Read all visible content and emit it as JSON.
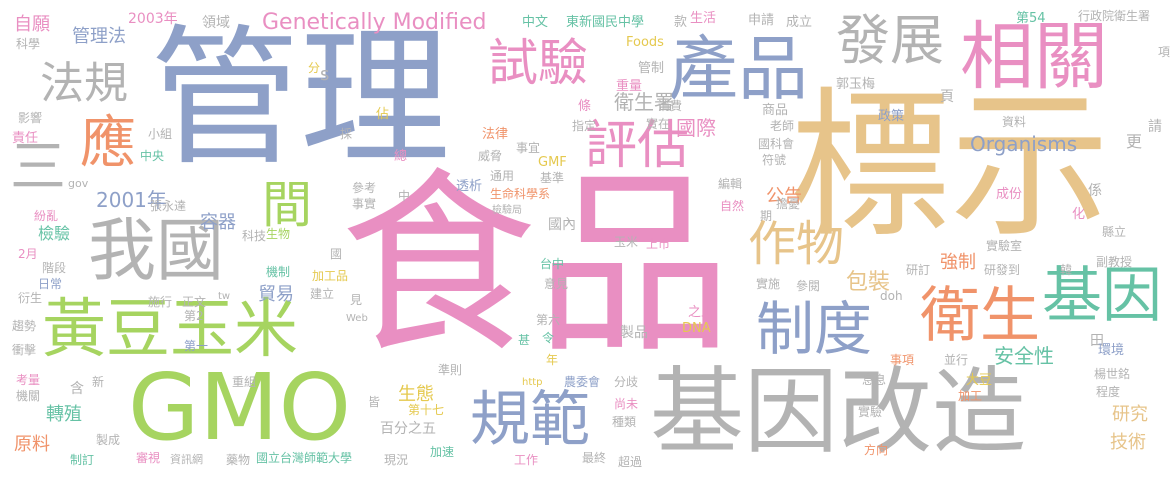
{
  "colors": {
    "background": "#ffffff",
    "palette": [
      "#e7c48a",
      "#8ea0c8",
      "#e98fc2",
      "#a6d460",
      "#b3b3b3",
      "#f0936a",
      "#66c2a5",
      "#e5c94f"
    ]
  },
  "words": [
    {
      "text": "食品",
      "color": "#e98fc2"
    },
    {
      "text": "標示",
      "color": "#e7c48a"
    },
    {
      "text": "管理",
      "color": "#8ea0c8"
    },
    {
      "text": "GMO",
      "color": "#a6d460"
    },
    {
      "text": "基因改造",
      "color": "#b3b3b3"
    },
    {
      "text": "相關",
      "color": "#e98fc2"
    },
    {
      "text": "產品",
      "color": "#8ea0c8"
    },
    {
      "text": "黃豆玉米",
      "color": "#a6d460"
    },
    {
      "text": "我國",
      "color": "#b3b3b3"
    },
    {
      "text": "規範",
      "color": "#8ea0c8"
    },
    {
      "text": "衛生",
      "color": "#f0936a"
    },
    {
      "text": "基因",
      "color": "#66c2a5"
    },
    {
      "text": "制度",
      "color": "#8ea0c8"
    },
    {
      "text": "試驗",
      "color": "#e98fc2"
    },
    {
      "text": "發展",
      "color": "#b3b3b3"
    },
    {
      "text": "評估",
      "color": "#e98fc2"
    },
    {
      "text": "作物",
      "color": "#e7c48a"
    },
    {
      "text": "法規",
      "color": "#b3b3b3"
    },
    {
      "text": "應",
      "color": "#f0936a"
    },
    {
      "text": "三",
      "color": "#b3b3b3"
    },
    {
      "text": "間",
      "color": "#a6d460"
    },
    {
      "text": "Genetically Modified",
      "color": "#e98fc2"
    },
    {
      "text": "2001年",
      "color": "#8ea0c8"
    },
    {
      "text": "國際",
      "color": "#e98fc2"
    },
    {
      "text": "公告",
      "color": "#f0936a"
    },
    {
      "text": "Organisms",
      "color": "#8ea0c8"
    },
    {
      "text": "包裝",
      "color": "#e7c48a"
    },
    {
      "text": "強制",
      "color": "#f0936a"
    },
    {
      "text": "安全性",
      "color": "#66c2a5"
    },
    {
      "text": "衛生署",
      "color": "#b3b3b3"
    },
    {
      "text": "管理法",
      "color": "#8ea0c8"
    },
    {
      "text": "完備",
      "color": "#e5c94f"
    },
    {
      "text": "容器",
      "color": "#8ea0c8"
    },
    {
      "text": "檢驗",
      "color": "#66c2a5"
    },
    {
      "text": "貿易",
      "color": "#8ea0c8"
    },
    {
      "text": "轉殖",
      "color": "#66c2a5"
    },
    {
      "text": "生態",
      "color": "#e5c94f"
    },
    {
      "text": "原料",
      "color": "#f0936a"
    },
    {
      "text": "技術",
      "color": "#e7c48a"
    },
    {
      "text": "研究",
      "color": "#e7c48a"
    },
    {
      "text": "自願",
      "color": "#e98fc2"
    },
    {
      "text": "2003年",
      "color": "#e98fc2"
    },
    {
      "text": "領域",
      "color": "#b3b3b3"
    },
    {
      "text": "中文",
      "color": "#66c2a5"
    },
    {
      "text": "東新國民中學",
      "color": "#66c2a5"
    },
    {
      "text": "款",
      "color": "#b3b3b3"
    },
    {
      "text": "生活",
      "color": "#e98fc2"
    },
    {
      "text": "申請",
      "color": "#b3b3b3"
    },
    {
      "text": "成立",
      "color": "#b3b3b3"
    },
    {
      "text": "第54",
      "color": "#66c2a5"
    },
    {
      "text": "行政院衛生署",
      "color": "#b3b3b3"
    },
    {
      "text": "科學",
      "color": "#b3b3b3"
    },
    {
      "text": "Foods",
      "color": "#e5c94f"
    },
    {
      "text": "項",
      "color": "#b3b3b3"
    },
    {
      "text": "分",
      "color": "#e5c94f"
    },
    {
      "text": "s",
      "color": "#b3b3b3"
    },
    {
      "text": "重量",
      "color": "#e98fc2"
    },
    {
      "text": "管制",
      "color": "#b3b3b3"
    },
    {
      "text": "郭玉梅",
      "color": "#b3b3b3"
    },
    {
      "text": "消費",
      "color": "#b3b3b3"
    },
    {
      "text": "商品",
      "color": "#b3b3b3"
    },
    {
      "text": "政策",
      "color": "#8ea0c8"
    },
    {
      "text": "頁",
      "color": "#b3b3b3"
    },
    {
      "text": "影響",
      "color": "#b3b3b3"
    },
    {
      "text": "佔",
      "color": "#e5c94f"
    },
    {
      "text": "條",
      "color": "#e98fc2"
    },
    {
      "text": "指定",
      "color": "#b3b3b3"
    },
    {
      "text": "實在",
      "color": "#b3b3b3"
    },
    {
      "text": "老師",
      "color": "#b3b3b3"
    },
    {
      "text": "資料",
      "color": "#b3b3b3"
    },
    {
      "text": "請",
      "color": "#b3b3b3"
    },
    {
      "text": "小組",
      "color": "#b3b3b3"
    },
    {
      "text": "採",
      "color": "#b3b3b3"
    },
    {
      "text": "法律",
      "color": "#f0936a"
    },
    {
      "text": "國科會",
      "color": "#b3b3b3"
    },
    {
      "text": "責任",
      "color": "#e98fc2"
    },
    {
      "text": "中央",
      "color": "#66c2a5"
    },
    {
      "text": "總",
      "color": "#e98fc2"
    },
    {
      "text": "威脅",
      "color": "#b3b3b3"
    },
    {
      "text": "事宜",
      "color": "#b3b3b3"
    },
    {
      "text": "GMF",
      "color": "#e5c94f"
    },
    {
      "text": "符號",
      "color": "#b3b3b3"
    },
    {
      "text": "更",
      "color": "#b3b3b3"
    },
    {
      "text": "gov",
      "color": "#b3b3b3"
    },
    {
      "text": "透析",
      "color": "#8ea0c8"
    },
    {
      "text": "通用",
      "color": "#b3b3b3"
    },
    {
      "text": "基準",
      "color": "#b3b3b3"
    },
    {
      "text": "編輯",
      "color": "#b3b3b3"
    },
    {
      "text": "成份",
      "color": "#e98fc2"
    },
    {
      "text": "係",
      "color": "#b3b3b3"
    },
    {
      "text": "參考",
      "color": "#b3b3b3"
    },
    {
      "text": "中",
      "color": "#b3b3b3"
    },
    {
      "text": "生命科學系",
      "color": "#f0936a"
    },
    {
      "text": "擔憂",
      "color": "#b3b3b3"
    },
    {
      "text": "事實",
      "color": "#b3b3b3"
    },
    {
      "text": "檢驗局",
      "color": "#b3b3b3"
    },
    {
      "text": "自然",
      "color": "#e98fc2"
    },
    {
      "text": "紛亂",
      "color": "#e98fc2"
    },
    {
      "text": "張永達",
      "color": "#b3b3b3"
    },
    {
      "text": "化",
      "color": "#e98fc2"
    },
    {
      "text": "期",
      "color": "#b3b3b3"
    },
    {
      "text": "科技",
      "color": "#b3b3b3"
    },
    {
      "text": "國內",
      "color": "#b3b3b3"
    },
    {
      "text": "縣立",
      "color": "#b3b3b3"
    },
    {
      "text": "實驗室",
      "color": "#b3b3b3"
    },
    {
      "text": "生物",
      "color": "#a6d460"
    },
    {
      "text": "國",
      "color": "#b3b3b3"
    },
    {
      "text": "玉米",
      "color": "#b3b3b3"
    },
    {
      "text": "上市",
      "color": "#e98fc2"
    },
    {
      "text": "2月",
      "color": "#e98fc2"
    },
    {
      "text": "台中",
      "color": "#66c2a5"
    },
    {
      "text": "階段",
      "color": "#b3b3b3"
    },
    {
      "text": "機制",
      "color": "#66c2a5"
    },
    {
      "text": "加工品",
      "color": "#e5c94f"
    },
    {
      "text": "研訂",
      "color": "#b3b3b3"
    },
    {
      "text": "研發到",
      "color": "#b3b3b3"
    },
    {
      "text": "韓",
      "color": "#b3b3b3"
    },
    {
      "text": "副教授",
      "color": "#b3b3b3"
    },
    {
      "text": "日常",
      "color": "#8ea0c8"
    },
    {
      "text": "施行",
      "color": "#b3b3b3"
    },
    {
      "text": "正文",
      "color": "#b3b3b3"
    },
    {
      "text": "tw",
      "color": "#b3b3b3"
    },
    {
      "text": "實施",
      "color": "#b3b3b3"
    },
    {
      "text": "參閱",
      "color": "#b3b3b3"
    },
    {
      "text": "doh",
      "color": "#b3b3b3"
    },
    {
      "text": "衍生",
      "color": "#b3b3b3"
    },
    {
      "text": "建立",
      "color": "#b3b3b3"
    },
    {
      "text": "見",
      "color": "#b3b3b3"
    },
    {
      "text": "意見",
      "color": "#b3b3b3"
    },
    {
      "text": "之上",
      "color": "#e98fc2"
    },
    {
      "text": "趨勢",
      "color": "#b3b3b3"
    },
    {
      "text": "第2",
      "color": "#b3b3b3"
    },
    {
      "text": "Web",
      "color": "#b3b3b3"
    },
    {
      "text": "DNA",
      "color": "#e5c94f"
    },
    {
      "text": "衝擊",
      "color": "#b3b3b3"
    },
    {
      "text": "第六",
      "color": "#b3b3b3"
    },
    {
      "text": "製品",
      "color": "#b3b3b3"
    },
    {
      "text": "第一",
      "color": "#8ea0c8"
    },
    {
      "text": "甚",
      "color": "#66c2a5"
    },
    {
      "text": "令",
      "color": "#66c2a5"
    },
    {
      "text": "田",
      "color": "#b3b3b3"
    },
    {
      "text": "並行",
      "color": "#b3b3b3"
    },
    {
      "text": "環境",
      "color": "#8ea0c8"
    },
    {
      "text": "事項",
      "color": "#f0936a"
    },
    {
      "text": "考量",
      "color": "#e98fc2"
    },
    {
      "text": "新",
      "color": "#b3b3b3"
    },
    {
      "text": "年",
      "color": "#e5c94f"
    },
    {
      "text": "準則",
      "color": "#b3b3b3"
    },
    {
      "text": "農委會",
      "color": "#8ea0c8"
    },
    {
      "text": "分歧",
      "color": "#b3b3b3"
    },
    {
      "text": "息息",
      "color": "#b3b3b3"
    },
    {
      "text": "大豆",
      "color": "#e5c94f"
    },
    {
      "text": "楊世銘",
      "color": "#b3b3b3"
    },
    {
      "text": "機關",
      "color": "#b3b3b3"
    },
    {
      "text": "含",
      "color": "#b3b3b3"
    },
    {
      "text": "http",
      "color": "#e5c94f"
    },
    {
      "text": "加工",
      "color": "#f0936a"
    },
    {
      "text": "程度",
      "color": "#b3b3b3"
    },
    {
      "text": "重組",
      "color": "#b3b3b3"
    },
    {
      "text": "皆",
      "color": "#b3b3b3"
    },
    {
      "text": "尚未",
      "color": "#e98fc2"
    },
    {
      "text": "實驗",
      "color": "#b3b3b3"
    },
    {
      "text": "第十七",
      "color": "#e5c94f"
    },
    {
      "text": "百分之五",
      "color": "#b3b3b3"
    },
    {
      "text": "種類",
      "color": "#b3b3b3"
    },
    {
      "text": "製成",
      "color": "#b3b3b3"
    },
    {
      "text": "方向",
      "color": "#f0936a"
    },
    {
      "text": "制訂",
      "color": "#66c2a5"
    },
    {
      "text": "審視",
      "color": "#e98fc2"
    },
    {
      "text": "資訊網",
      "color": "#b3b3b3"
    },
    {
      "text": "藥物",
      "color": "#b3b3b3"
    },
    {
      "text": "國立台灣師範大學",
      "color": "#66c2a5"
    },
    {
      "text": "現況",
      "color": "#b3b3b3"
    },
    {
      "text": "加速",
      "color": "#66c2a5"
    },
    {
      "text": "工作",
      "color": "#e98fc2"
    },
    {
      "text": "最終",
      "color": "#b3b3b3"
    },
    {
      "text": "超過",
      "color": "#b3b3b3"
    }
  ]
}
